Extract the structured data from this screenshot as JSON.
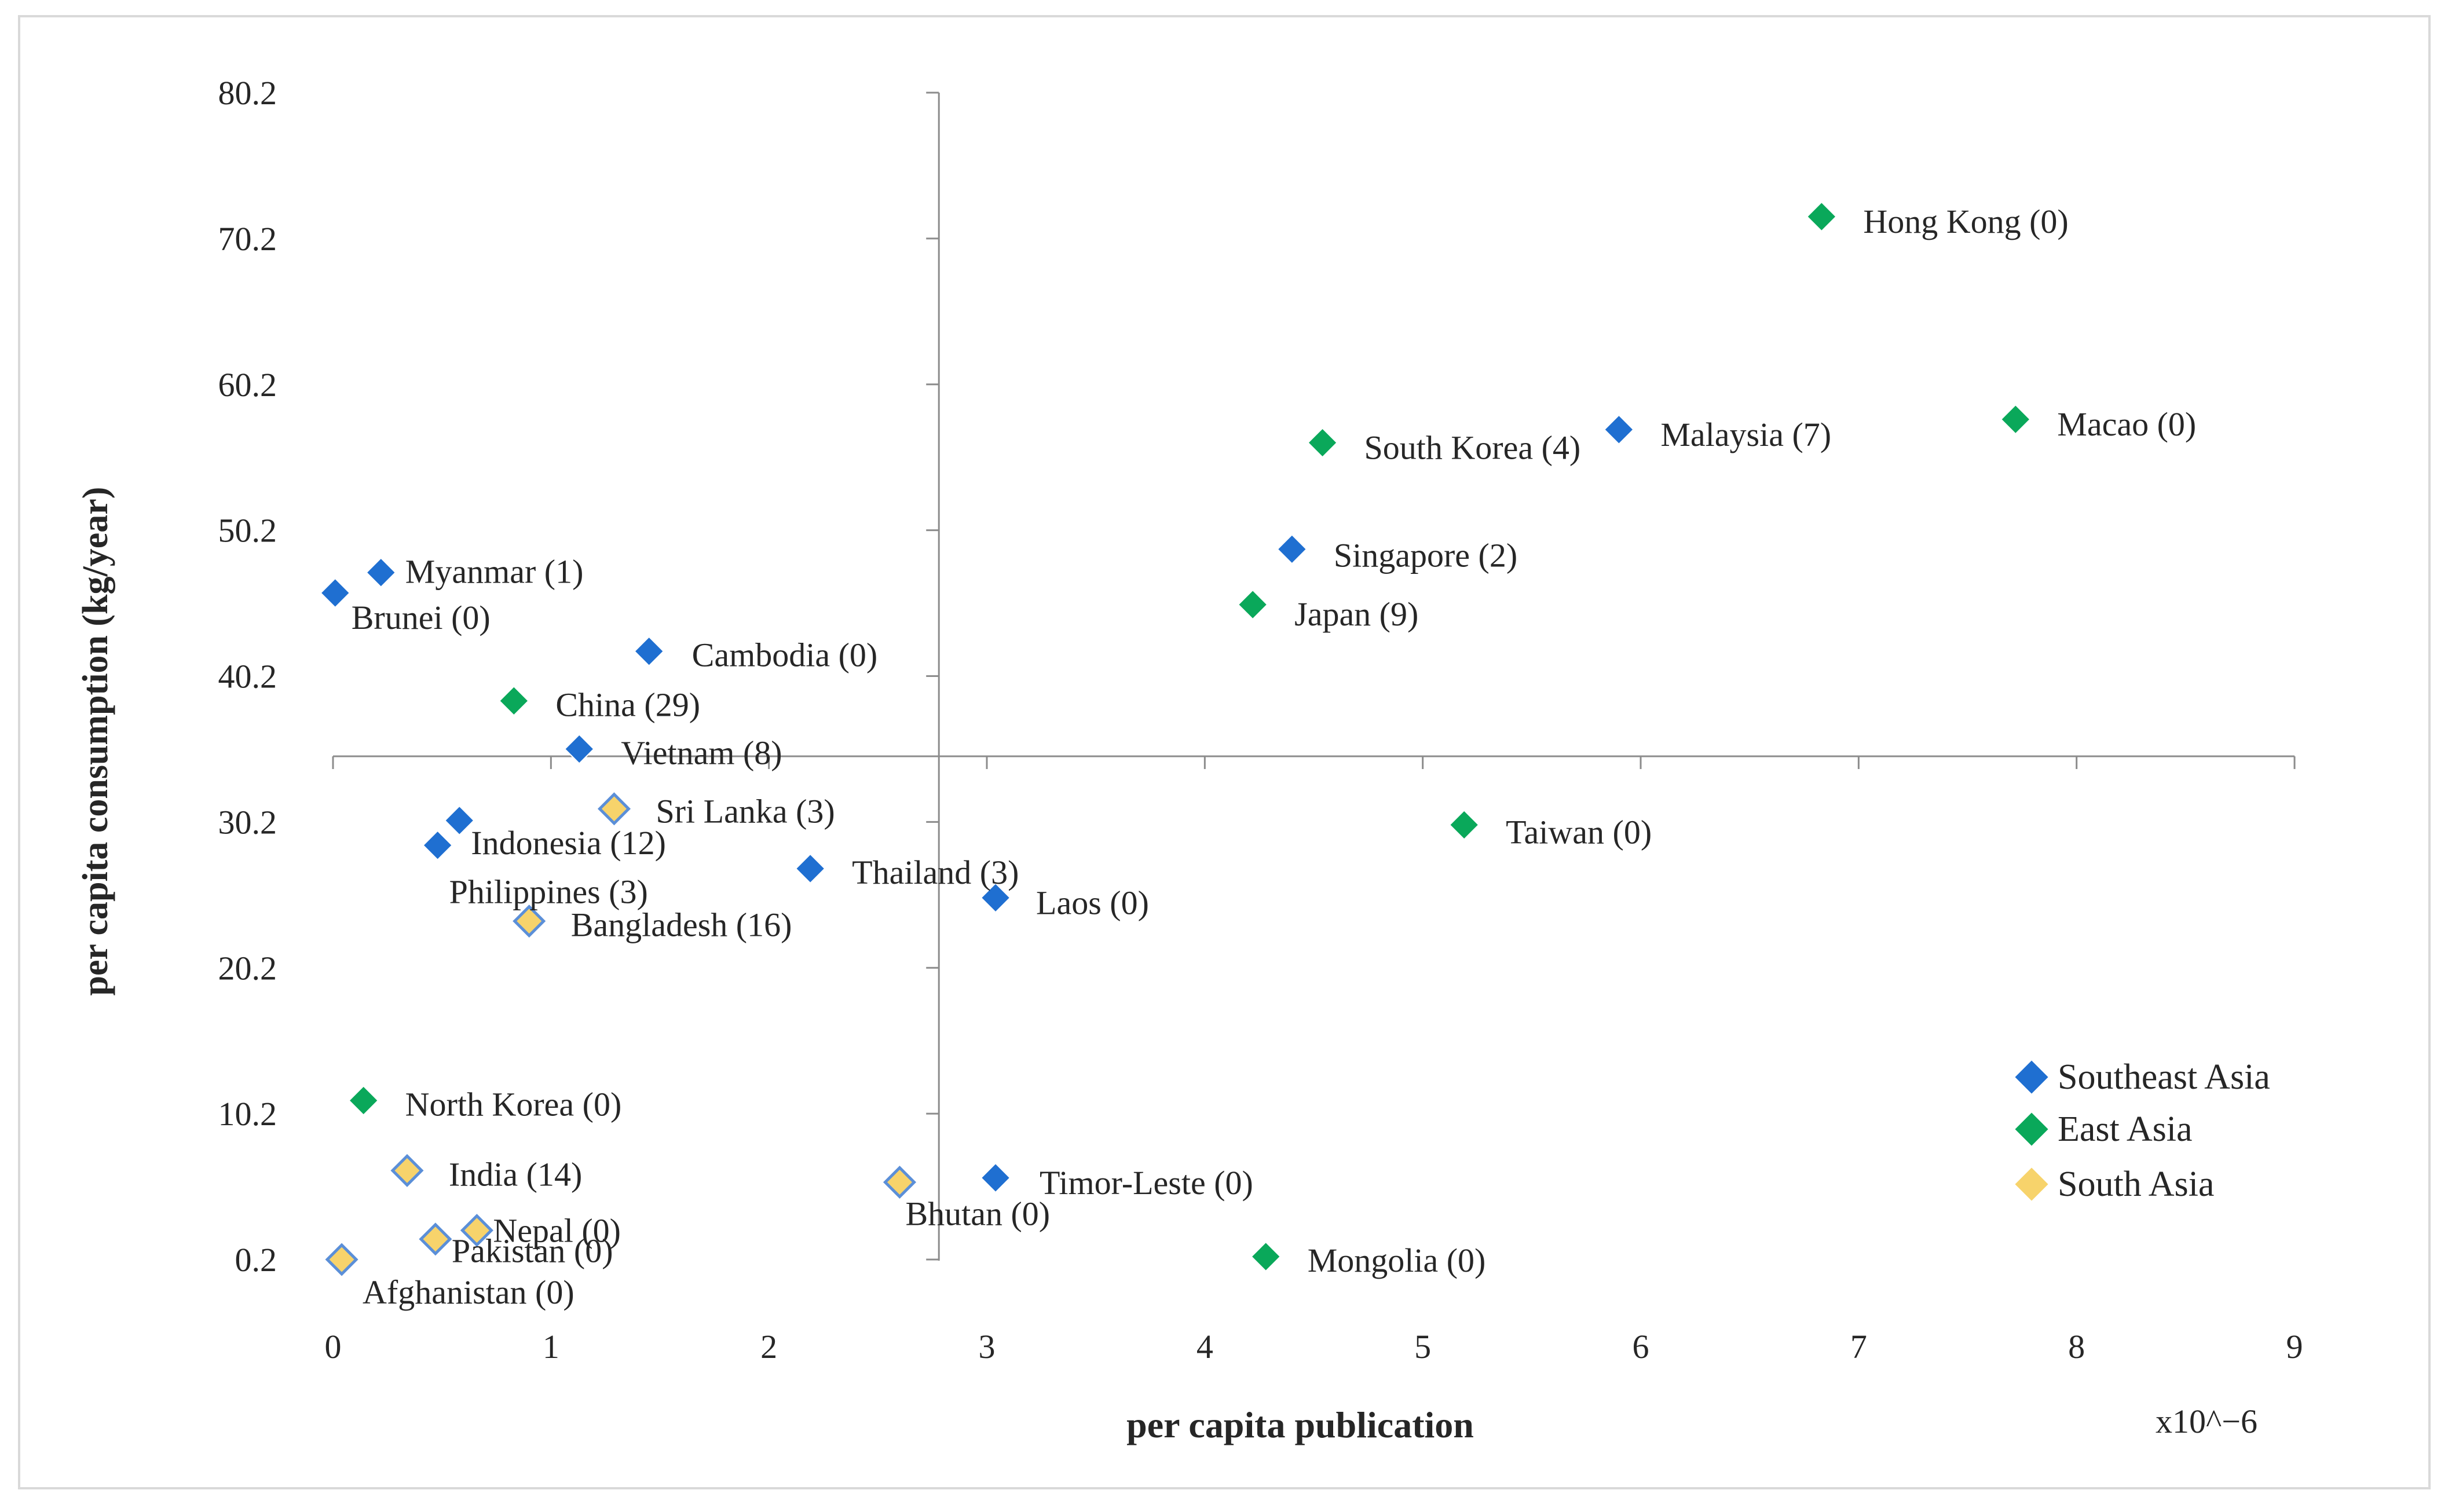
{
  "chart_data": {
    "type": "scatter",
    "xlabel": "per capita publication",
    "ylabel": "per capita consumption  (kg/year)",
    "x_multiplier_label": "x10^−6",
    "xlim": [
      0,
      9
    ],
    "ylim": [
      0.2,
      80.2
    ],
    "x_ticks": [
      "0",
      "1",
      "2",
      "3",
      "4",
      "5",
      "6",
      "7",
      "8",
      "9"
    ],
    "y_ticks": [
      "0.2",
      "10.2",
      "20.2",
      "30.2",
      "40.2",
      "50.2",
      "60.2",
      "70.2",
      "80.2"
    ],
    "quadrant_lines": {
      "x": 2.78,
      "y": 34.7
    },
    "grid": false,
    "legend_position": "bottom-right",
    "colors": {
      "Southeast Asia": "#1f6fd1",
      "East Asia": "#0aa85a",
      "South Asia": "#f7d36b",
      "South Asia outline": "#5b8fd8",
      "axis": "#8c8c8c",
      "text": "#262626"
    },
    "series": [
      {
        "name": "Southeast Asia",
        "points": [
          {
            "label": "Myanmar (1)",
            "x": 0.22,
            "y": 47.3
          },
          {
            "label": "Brunei (0)",
            "x": 0.01,
            "y": 45.9
          },
          {
            "label": "Cambodia (0)",
            "x": 1.45,
            "y": 41.9
          },
          {
            "label": "Vietnam (8)",
            "x": 1.13,
            "y": 35.2
          },
          {
            "label": "Indonesia (12)",
            "x": 0.58,
            "y": 30.3
          },
          {
            "label": "Philippines (3)",
            "x": 0.48,
            "y": 28.6
          },
          {
            "label": "Thailand (3)",
            "x": 2.19,
            "y": 27.0
          },
          {
            "label": "Laos (0)",
            "x": 3.04,
            "y": 25.0
          },
          {
            "label": "Timor-Leste (0)",
            "x": 3.04,
            "y": 5.8
          },
          {
            "label": "Singapore (2)",
            "x": 4.4,
            "y": 48.9
          },
          {
            "label": "Malaysia (7)",
            "x": 5.9,
            "y": 57.1
          }
        ]
      },
      {
        "name": "East Asia",
        "points": [
          {
            "label": "Hong Kong (0)",
            "x": 6.83,
            "y": 71.7
          },
          {
            "label": "Macao (0)",
            "x": 7.72,
            "y": 57.8
          },
          {
            "label": "South Korea (4)",
            "x": 4.54,
            "y": 56.2
          },
          {
            "label": "Japan (9)",
            "x": 4.22,
            "y": 45.1
          },
          {
            "label": "China (29)",
            "x": 0.83,
            "y": 38.5
          },
          {
            "label": "Taiwan (0)",
            "x": 5.19,
            "y": 30.0
          },
          {
            "label": "North Korea (0)",
            "x": 0.14,
            "y": 11.1
          },
          {
            "label": "Mongolia (0)",
            "x": 4.28,
            "y": 0.4
          }
        ]
      },
      {
        "name": "South Asia",
        "points": [
          {
            "label": "Sri Lanka (3)",
            "x": 1.29,
            "y": 31.1
          },
          {
            "label": "Bangladesh (16)",
            "x": 0.9,
            "y": 23.4
          },
          {
            "label": "India (14)",
            "x": 0.34,
            "y": 6.3
          },
          {
            "label": "Bhutan (0)",
            "x": 2.6,
            "y": 5.5
          },
          {
            "label": "Nepal (0)",
            "x": 0.66,
            "y": 2.2
          },
          {
            "label": "Pakistan (0)",
            "x": 0.47,
            "y": 1.6
          },
          {
            "label": "Afghanistan (0)",
            "x": 0.04,
            "y": 0.2
          }
        ]
      }
    ],
    "legend": [
      "Southeast Asia",
      "East Asia",
      "South Asia"
    ]
  }
}
